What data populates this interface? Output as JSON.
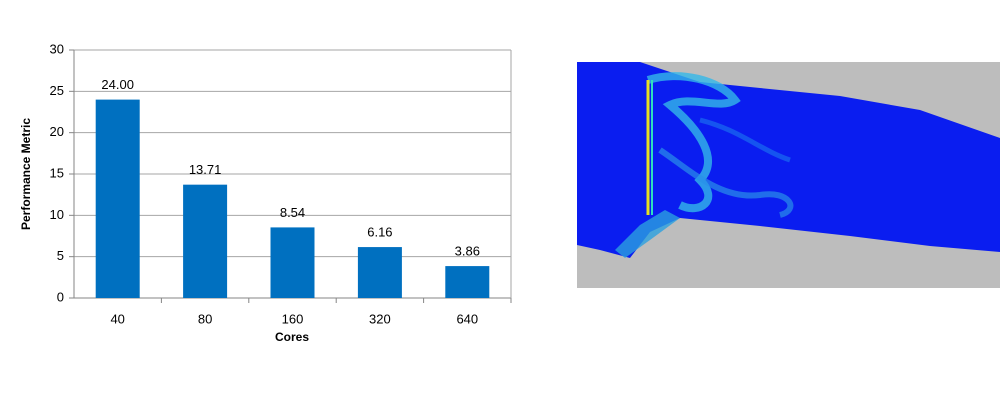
{
  "chart_data": {
    "type": "bar",
    "x_label": "Cores",
    "y_label": "Performance Metric",
    "categories": [
      "40",
      "80",
      "160",
      "320",
      "640"
    ],
    "values": [
      24.0,
      13.71,
      8.54,
      6.16,
      3.86
    ],
    "value_labels": [
      "24.00",
      "13.71",
      "8.54",
      "6.16",
      "3.86"
    ],
    "color": "#0070c0",
    "ylim": [
      0,
      30
    ],
    "yticks": [
      0,
      5,
      10,
      15,
      20,
      25,
      30
    ],
    "grid": true
  }
}
